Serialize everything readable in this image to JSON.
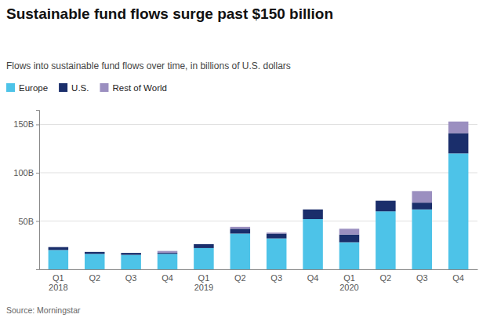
{
  "chart_data": {
    "type": "bar",
    "stacked": true,
    "title": "Sustainable fund flows surge past $150 billion",
    "subtitle": "Flows into sustainable fund flows over time, in billions of U.S. dollars",
    "source": "Source: Morningstar",
    "categories": [
      "Q1\n2018",
      "Q2",
      "Q3",
      "Q4",
      "Q1\n2019",
      "Q2",
      "Q3",
      "Q4",
      "Q1\n2020",
      "Q2",
      "Q3",
      "Q4"
    ],
    "series": [
      {
        "name": "Europe",
        "color": "#4dc3e8",
        "values": [
          20,
          16,
          15,
          16,
          22,
          37,
          32,
          52,
          28,
          60,
          62,
          120
        ]
      },
      {
        "name": "U.S.",
        "color": "#1a2e6b",
        "values": [
          3,
          2,
          2,
          1,
          4,
          5,
          5,
          10,
          8,
          11,
          7,
          21
        ]
      },
      {
        "name": "Rest of World",
        "color": "#9b8fc0",
        "values": [
          0,
          0,
          0,
          2,
          0,
          2,
          1,
          0,
          6,
          0,
          12,
          12
        ]
      }
    ],
    "ylim": [
      0,
      165
    ],
    "yticks": [
      {
        "value": 0,
        "label": null
      },
      {
        "value": 50,
        "label": "50B"
      },
      {
        "value": 100,
        "label": "100B"
      },
      {
        "value": 150,
        "label": "150B"
      }
    ],
    "grid": true,
    "legend": "top-left"
  }
}
